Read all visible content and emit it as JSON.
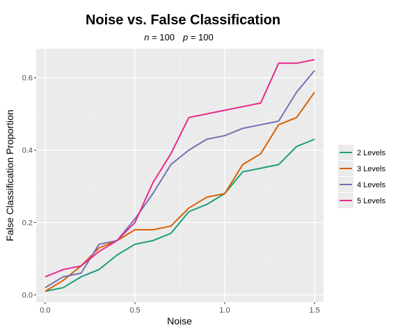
{
  "chart_data": {
    "type": "line",
    "title": "Noise vs. False Classification",
    "subtitle": {
      "n_label": "n",
      "n_value": " = 100",
      "p_label": "p",
      "p_value": " = 100"
    },
    "xlabel": "Noise",
    "ylabel": "False Classification Proportion",
    "xlim": [
      -0.05,
      1.55
    ],
    "ylim": [
      -0.02,
      0.68
    ],
    "x_ticks": [
      0.0,
      0.5,
      1.0,
      1.5
    ],
    "x_tick_labels": [
      "0.0",
      "0.5",
      "1.0",
      "1.5"
    ],
    "y_ticks": [
      0.0,
      0.2,
      0.4,
      0.6
    ],
    "y_tick_labels": [
      "0.0",
      "0.2",
      "0.4",
      "0.6"
    ],
    "grid": true,
    "legend_position": "right",
    "x": [
      0.0,
      0.1,
      0.2,
      0.3,
      0.4,
      0.5,
      0.6,
      0.7,
      0.8,
      0.9,
      1.0,
      1.1,
      1.2,
      1.3,
      1.4,
      1.5
    ],
    "series": [
      {
        "name": "2 Levels",
        "color": "#1b9e77",
        "values": [
          0.01,
          0.02,
          0.05,
          0.07,
          0.11,
          0.14,
          0.15,
          0.17,
          0.23,
          0.25,
          0.28,
          0.34,
          0.35,
          0.36,
          0.41,
          0.43
        ]
      },
      {
        "name": "3 Levels",
        "color": "#d95f02",
        "values": [
          0.01,
          0.04,
          0.08,
          0.13,
          0.15,
          0.18,
          0.18,
          0.19,
          0.24,
          0.27,
          0.28,
          0.36,
          0.39,
          0.47,
          0.49,
          0.56
        ]
      },
      {
        "name": "4 Levels",
        "color": "#7570b3",
        "values": [
          0.02,
          0.05,
          0.06,
          0.14,
          0.15,
          0.21,
          0.28,
          0.36,
          0.4,
          0.43,
          0.44,
          0.46,
          0.47,
          0.48,
          0.56,
          0.62
        ]
      },
      {
        "name": "5 Levels",
        "color": "#e7298a",
        "values": [
          0.05,
          0.07,
          0.08,
          0.12,
          0.15,
          0.2,
          0.31,
          0.39,
          0.49,
          0.5,
          0.51,
          0.52,
          0.53,
          0.64,
          0.64,
          0.65
        ]
      }
    ],
    "colors": {
      "panel_background": "#ebebeb",
      "grid_major": "#ffffff",
      "grid_minor": "#f5f5f5"
    }
  }
}
